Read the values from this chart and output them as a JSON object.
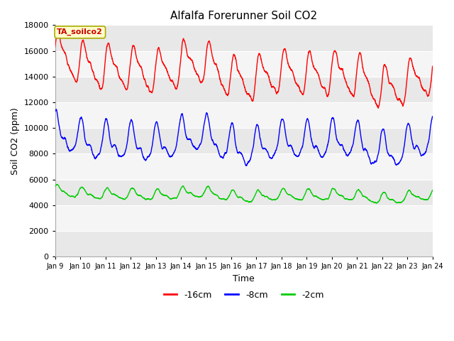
{
  "title": "Alfalfa Forerunner Soil CO2",
  "xlabel": "Time",
  "ylabel": "Soil CO2 (ppm)",
  "ylim": [
    0,
    18000
  ],
  "yticks": [
    0,
    2000,
    4000,
    6000,
    8000,
    10000,
    12000,
    14000,
    16000,
    18000
  ],
  "fig_bg_color": "#ffffff",
  "plot_bg_color": "#ffffff",
  "legend_labels": [
    "-16cm",
    "-8cm",
    "-2cm"
  ],
  "legend_colors": [
    "#ff0000",
    "#0000ff",
    "#00cc00"
  ],
  "annotation_text": "TA_soilco2",
  "annotation_bg": "#ffffcc",
  "annotation_border": "#aaaa00",
  "x_tick_labels": [
    "Jan 9",
    "Jan 10",
    "Jan 11",
    "Jan 12",
    "Jan 13",
    "Jan 14",
    "Jan 15",
    "Jan 16",
    "Jan 17",
    "Jan 18",
    "Jan 19",
    "Jan 20",
    "Jan 21",
    "Jan 22",
    "Jan 23",
    "Jan 24"
  ],
  "grid_color": "#dddddd",
  "band_colors": [
    "#e8e8e8",
    "#f5f5f5"
  ],
  "line_width": 1.0
}
